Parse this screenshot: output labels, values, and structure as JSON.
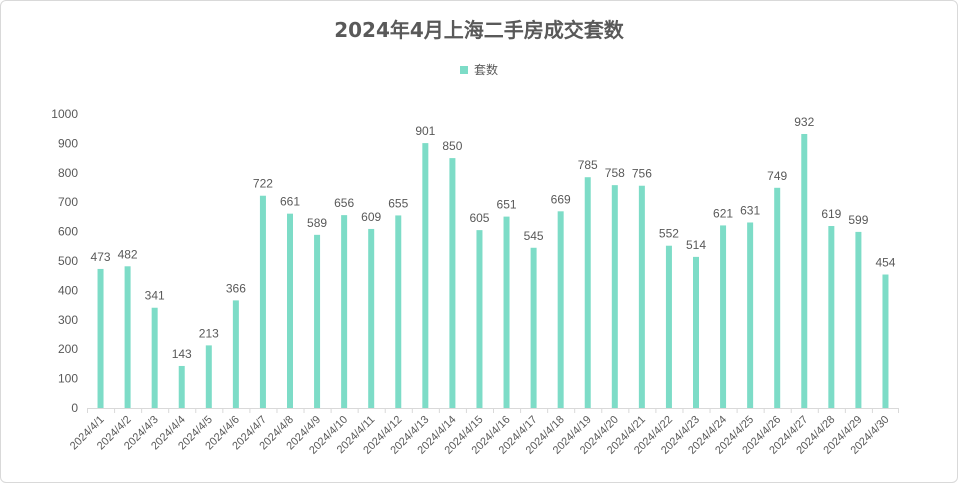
{
  "chart_data": {
    "type": "bar",
    "title": "2024年4月上海二手房成交套数",
    "xlabel": "",
    "ylabel": "",
    "ylim": [
      0,
      1000
    ],
    "yticks": [
      0,
      100,
      200,
      300,
      400,
      500,
      600,
      700,
      800,
      900,
      1000
    ],
    "grid": false,
    "legend_position": "top-center",
    "bar_color": "#7ddcc7",
    "categories": [
      "2024/4/1",
      "2024/4/2",
      "2024/4/3",
      "2024/4/4",
      "2024/4/5",
      "2024/4/6",
      "2024/4/7",
      "2024/4/8",
      "2024/4/9",
      "2024/4/10",
      "2024/4/11",
      "2024/4/12",
      "2024/4/13",
      "2024/4/14",
      "2024/4/15",
      "2024/4/16",
      "2024/4/17",
      "2024/4/18",
      "2024/4/19",
      "2024/4/20",
      "2024/4/21",
      "2024/4/22",
      "2024/4/23",
      "2024/4/24",
      "2024/4/25",
      "2024/4/26",
      "2024/4/27",
      "2024/4/28",
      "2024/4/29",
      "2024/4/30"
    ],
    "series": [
      {
        "name": "套数",
        "values": [
          473,
          482,
          341,
          143,
          213,
          366,
          722,
          661,
          589,
          656,
          609,
          655,
          901,
          850,
          605,
          651,
          545,
          669,
          785,
          758,
          756,
          552,
          514,
          621,
          631,
          749,
          932,
          619,
          599,
          454
        ]
      }
    ]
  }
}
